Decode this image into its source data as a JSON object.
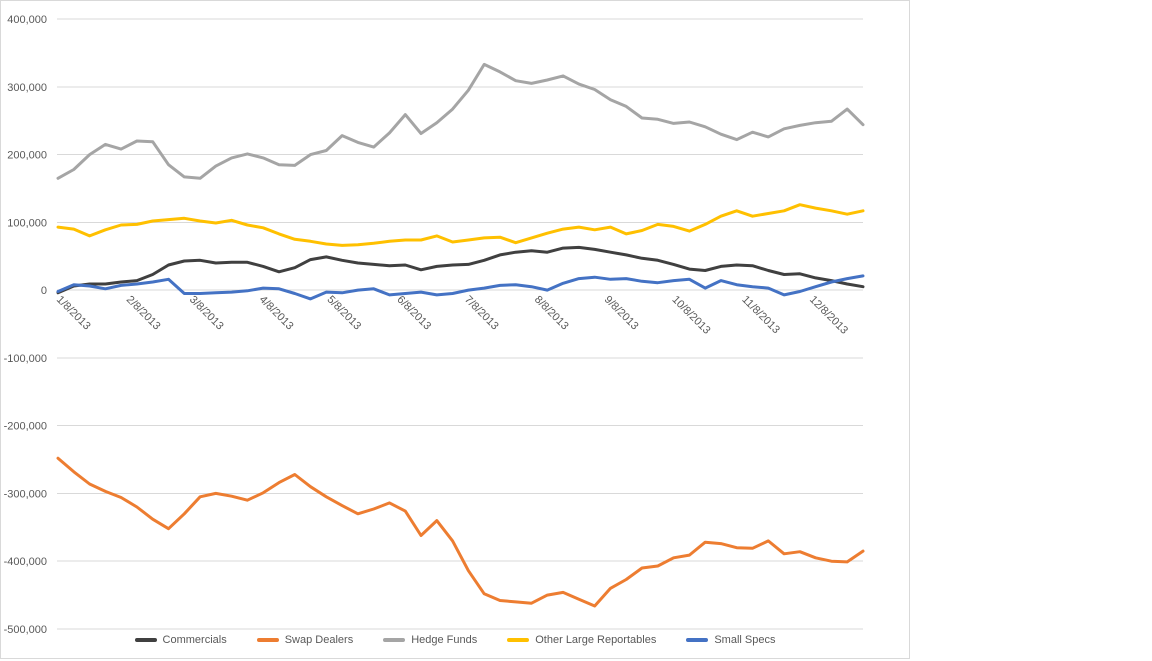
{
  "panel": {
    "background": "#ffffff",
    "border_color": "#d9d9d9"
  },
  "axis": {
    "text_color": "#595959",
    "gridline_color": "#d9d9d9"
  },
  "chart_data": {
    "type": "line",
    "title": "",
    "xlabel": "",
    "ylabel": "",
    "ylim": [
      -500000,
      400000
    ],
    "grid": "horizontal",
    "legend_position": "bottom",
    "y_tick_values": [
      400000,
      300000,
      200000,
      100000,
      0,
      -100000,
      -200000,
      -300000,
      -400000,
      -500000
    ],
    "y_tick_labels": [
      "400,000",
      "300,000",
      "200,000",
      "100,000",
      "0",
      "-100,000",
      "-200,000",
      "-300,000",
      "-400,000",
      "-500,000"
    ],
    "x_tick_labels": [
      "1/8/2013",
      "2/8/2013",
      "3/8/2013",
      "4/8/2013",
      "5/8/2013",
      "6/8/2013",
      "7/8/2013",
      "8/8/2013",
      "9/8/2013",
      "10/8/2013",
      "11/8/2013",
      "12/8/2013"
    ],
    "x": [
      "1/8/2013",
      "1/15/2013",
      "1/22/2013",
      "1/29/2013",
      "2/5/2013",
      "2/12/2013",
      "2/19/2013",
      "2/26/2013",
      "3/5/2013",
      "3/12/2013",
      "3/19/2013",
      "3/26/2013",
      "4/2/2013",
      "4/9/2013",
      "4/16/2013",
      "4/23/2013",
      "4/30/2013",
      "5/7/2013",
      "5/14/2013",
      "5/21/2013",
      "5/28/2013",
      "6/4/2013",
      "6/11/2013",
      "6/18/2013",
      "6/25/2013",
      "7/2/2013",
      "7/9/2013",
      "7/16/2013",
      "7/23/2013",
      "7/30/2013",
      "8/6/2013",
      "8/13/2013",
      "8/20/2013",
      "8/27/2013",
      "9/3/2013",
      "9/10/2013",
      "9/17/2013",
      "9/24/2013",
      "10/1/2013",
      "10/8/2013",
      "10/15/2013",
      "10/22/2013",
      "10/29/2013",
      "11/5/2013",
      "11/12/2013",
      "11/19/2013",
      "11/26/2013",
      "12/3/2013",
      "12/10/2013",
      "12/17/2013",
      "12/24/2013",
      "12/31/2013"
    ],
    "series": [
      {
        "name": "Commercials",
        "color": "#404040",
        "values": [
          -4000,
          6000,
          9000,
          9000,
          12000,
          14000,
          23000,
          37000,
          43000,
          44000,
          40000,
          41000,
          41000,
          35000,
          27000,
          33000,
          45000,
          49000,
          44000,
          40000,
          38000,
          36000,
          37000,
          30000,
          35000,
          37000,
          38000,
          44000,
          52000,
          56000,
          58000,
          56000,
          62000,
          63000,
          60000,
          56000,
          52000,
          47000,
          44000,
          38000,
          31000,
          29000,
          35000,
          37000,
          36000,
          29000,
          23000,
          24000,
          18000,
          14000,
          9000,
          5000
        ]
      },
      {
        "name": "Swap Dealers",
        "color": "#ED7D31",
        "values": [
          -248000,
          -268000,
          -286000,
          -297000,
          -306000,
          -320000,
          -338000,
          -352000,
          -330000,
          -305000,
          -300000,
          -304000,
          -310000,
          -299000,
          -284000,
          -272000,
          -290000,
          -305000,
          -318000,
          -330000,
          -323000,
          -314000,
          -326000,
          -362000,
          -340000,
          -370000,
          -414000,
          -448000,
          -458000,
          -460000,
          -462000,
          -450000,
          -446000,
          -456000,
          -466000,
          -440000,
          -427000,
          -410000,
          -407000,
          -395000,
          -391000,
          -372000,
          -374000,
          -380000,
          -381000,
          -370000,
          -389000,
          -386000,
          -395000,
          -400000,
          -401000,
          -385000
        ]
      },
      {
        "name": "Hedge Funds",
        "color": "#A5A5A5",
        "values": [
          165000,
          178000,
          200000,
          215000,
          208000,
          220000,
          219000,
          185000,
          167000,
          165000,
          183000,
          195000,
          201000,
          195000,
          185000,
          184000,
          200000,
          206000,
          228000,
          218000,
          211000,
          232000,
          259000,
          231000,
          247000,
          267000,
          295000,
          333000,
          322000,
          309000,
          305000,
          310000,
          316000,
          304000,
          296000,
          281000,
          271000,
          254000,
          252000,
          246000,
          248000,
          241000,
          230000,
          222000,
          233000,
          226000,
          238000,
          243000,
          247000,
          249000,
          267000,
          244000
        ]
      },
      {
        "name": "Other Large Reportables",
        "color": "#FFC000",
        "values": [
          93000,
          90000,
          80000,
          89000,
          96000,
          97000,
          102000,
          104000,
          106000,
          102000,
          99000,
          103000,
          96000,
          92000,
          83000,
          75000,
          72000,
          68000,
          66000,
          67000,
          69000,
          72000,
          74000,
          74000,
          80000,
          71000,
          74000,
          77000,
          78000,
          70000,
          77000,
          84000,
          90000,
          93000,
          89000,
          93000,
          83000,
          88000,
          97000,
          94000,
          87000,
          97000,
          109000,
          117000,
          109000,
          113000,
          117000,
          126000,
          121000,
          117000,
          112000,
          117000
        ]
      },
      {
        "name": "Small Specs",
        "color": "#4472C4",
        "values": [
          -2000,
          8000,
          6000,
          2000,
          7000,
          9000,
          12000,
          16000,
          -5000,
          -5000,
          -4000,
          -3000,
          -1000,
          3000,
          2000,
          -5000,
          -13000,
          -3000,
          -4000,
          0,
          2000,
          -7000,
          -5000,
          -3000,
          -7000,
          -5000,
          0,
          3000,
          7000,
          8000,
          5000,
          0,
          10000,
          17000,
          19000,
          16000,
          17000,
          13000,
          11000,
          14000,
          16000,
          3000,
          14000,
          8000,
          5000,
          3000,
          -7000,
          -2000,
          5000,
          12000,
          17000,
          21000
        ]
      }
    ]
  }
}
